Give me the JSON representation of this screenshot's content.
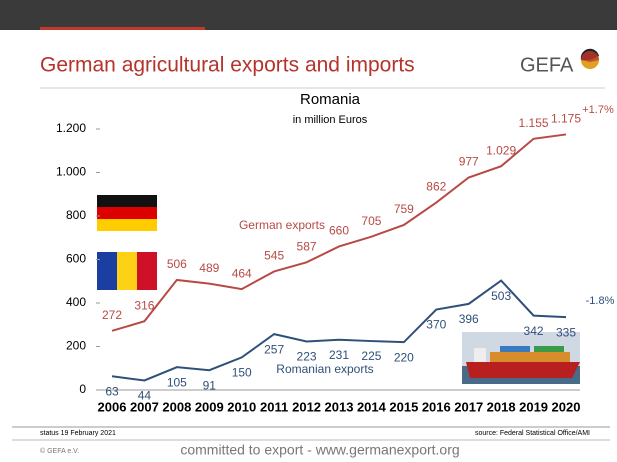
{
  "header": {
    "title": "German agricultural exports and imports",
    "logo": "GEFA"
  },
  "chart_data": {
    "type": "line",
    "title": "Romania",
    "subtitle": "in million Euros",
    "categories": [
      "2006",
      "2007",
      "2008",
      "2009",
      "2010",
      "2011",
      "2012",
      "2013",
      "2014",
      "2015",
      "2016",
      "2017",
      "2018",
      "2019",
      "2020"
    ],
    "series": [
      {
        "name": "German exports",
        "color": "#b84a45",
        "values": [
          272,
          316,
          506,
          489,
          464,
          545,
          587,
          660,
          705,
          759,
          862,
          977,
          1029,
          1155,
          1175
        ],
        "value_labels": [
          "272",
          "316",
          "506",
          "489",
          "464",
          "545",
          "587",
          "660",
          "705",
          "759",
          "862",
          "977",
          "1.029",
          "1.155",
          "1.175"
        ],
        "change": "+1.7%"
      },
      {
        "name": "Romanian exports",
        "color": "#2f5079",
        "values": [
          63,
          44,
          105,
          91,
          150,
          257,
          223,
          231,
          225,
          220,
          370,
          396,
          503,
          342,
          335
        ],
        "change": "-1.8%"
      }
    ],
    "ylim": [
      0,
      1200
    ],
    "yticks": [
      0,
      200,
      400,
      600,
      800,
      {
        "value": 1000,
        "label": "1.000"
      },
      {
        "value": 1200,
        "label": "1.200"
      }
    ]
  },
  "footer": {
    "status": "status 19 February 2021",
    "source": "source: Federal Statistical Office/AMI",
    "copyright": "© GEFA e.V.",
    "slogan": "committed to export - www.germanexport.org"
  }
}
